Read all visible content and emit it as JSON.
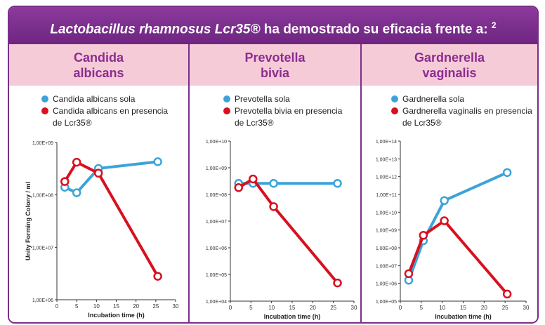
{
  "banner": {
    "species": "Lactobacillus rhamnosus Lcr35®",
    "rest": " ha demostrado su eficacia frente a: ",
    "ref": "2"
  },
  "colors": {
    "series_a": "#3ca3d9",
    "series_b": "#d8101f",
    "frame": "#7a2f8b",
    "header_bg": "#f6cbd8",
    "header_text": "#8b2d8f"
  },
  "panels": [
    {
      "title_line1": "Candida",
      "title_line2": "albicans",
      "legend_a": "Candida albicans sola",
      "legend_b_line1": "Candida albicans en presencia",
      "legend_b_line2": "de Lcr35®"
    },
    {
      "title_line1": "Prevotella",
      "title_line2": "bivia",
      "legend_a": "Prevotella sola",
      "legend_b_line1": "Prevotella bivia en presencia",
      "legend_b_line2": "de Lcr35®"
    },
    {
      "title_line1": "Gardnerella",
      "title_line2": "vaginalis",
      "legend_a": "Gardnerella sola",
      "legend_b_line1": "Gardnerella vaginalis en presencia",
      "legend_b_line2": "de Lcr35®"
    }
  ],
  "chart_data": [
    {
      "type": "line",
      "xlabel": "Incubation time (h)",
      "ylabel": "Unity Forming Colony / ml",
      "xlim": [
        0,
        30
      ],
      "xticks": [
        "0",
        "5",
        "10",
        "15",
        "20",
        "25",
        "30"
      ],
      "ylim_log10": [
        6,
        9
      ],
      "yticks": [
        "1,00E+06",
        "1,00E+07",
        "1,00E+08",
        "1,00E+09"
      ],
      "yscale": "log",
      "series": [
        {
          "name": "Candida albicans sola",
          "x": [
            2,
            5,
            10.5,
            25.5
          ],
          "y": [
            140000000,
            110000000,
            320000000,
            430000000
          ]
        },
        {
          "name": "Candida albicans en presencia de Lcr35®",
          "x": [
            2,
            5,
            10.5,
            25.5
          ],
          "y": [
            180000000,
            420000000,
            260000000,
            2800000
          ]
        }
      ]
    },
    {
      "type": "line",
      "xlabel": "Incubation time (h)",
      "ylabel": "",
      "xlim": [
        0,
        30
      ],
      "xticks": [
        "0",
        "5",
        "10",
        "15",
        "20",
        "25",
        "30"
      ],
      "ylim_log10": [
        4,
        10
      ],
      "yticks": [
        "1,00E+04",
        "1,00E+05",
        "1,00E+06",
        "1,00E+07",
        "1,00E+08",
        "1,00E+09",
        "1,00E+10"
      ],
      "yscale": "log",
      "series": [
        {
          "name": "Prevotella sola",
          "x": [
            2,
            5.5,
            10.5,
            26
          ],
          "y": [
            260000000,
            260000000,
            260000000,
            260000000
          ]
        },
        {
          "name": "Prevotella bivia en presencia de Lcr35®",
          "x": [
            2,
            5.5,
            10.5,
            26
          ],
          "y": [
            180000000,
            380000000,
            35000000,
            48000
          ]
        }
      ]
    },
    {
      "type": "line",
      "xlabel": "Incubation time (h)",
      "ylabel": "",
      "xlim": [
        0,
        30
      ],
      "xticks": [
        "0",
        "5",
        "10",
        "15",
        "20",
        "25",
        "30"
      ],
      "ylim_log10": [
        5,
        14
      ],
      "yticks": [
        "1,00E+05",
        "1,00E+06",
        "1,00E+07",
        "1,00E+08",
        "1,00E+09",
        "1,00E+10",
        "1,00E+11",
        "1,00E+12",
        "1,00E+13",
        "1,00E+14"
      ],
      "yscale": "log",
      "series": [
        {
          "name": "Gardnerella sola",
          "x": [
            2,
            5.5,
            10.5,
            25.5
          ],
          "y": [
            1500000,
            250000000,
            45000000000,
            1700000000000
          ]
        },
        {
          "name": "Gardnerella vaginalis en presencia de Lcr35®",
          "x": [
            2,
            5.5,
            10.5,
            25.5
          ],
          "y": [
            3500000,
            500000000,
            3300000000,
            250000
          ]
        }
      ]
    }
  ]
}
